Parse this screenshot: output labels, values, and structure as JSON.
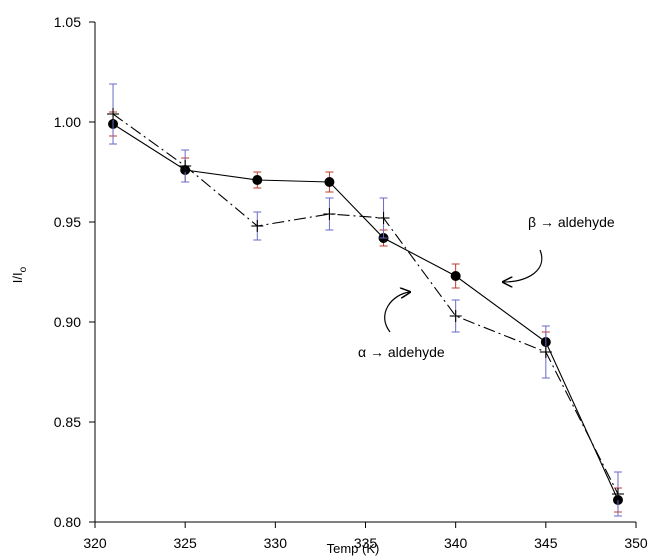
{
  "chart_data": {
    "type": "line",
    "xlabel": "Temp (K)",
    "ylabel_main": "I/I",
    "ylabel_sub": "o",
    "xlim": [
      320,
      350
    ],
    "ylim": [
      0.8,
      1.05
    ],
    "x_ticks": [
      320,
      325,
      330,
      335,
      340,
      345,
      350
    ],
    "y_ticks": [
      0.8,
      0.85,
      0.9,
      0.95,
      1.0,
      1.05
    ],
    "grid": false,
    "legend": "none",
    "series": [
      {
        "key": "beta",
        "x": [
          321,
          325,
          329,
          333,
          336,
          340,
          345,
          349
        ],
        "y": [
          0.999,
          0.976,
          0.971,
          0.97,
          0.942,
          0.923,
          0.89,
          0.811
        ],
        "err": [
          0.006,
          0.006,
          0.004,
          0.005,
          0.004,
          0.006,
          0.005,
          0.006
        ],
        "marker": "circle",
        "line": "solid",
        "color": "#000000",
        "err_color": "#c0392b"
      },
      {
        "key": "alpha",
        "x": [
          321,
          325,
          329,
          333,
          336,
          340,
          345,
          349
        ],
        "y": [
          1.004,
          0.978,
          0.948,
          0.954,
          0.952,
          0.903,
          0.885,
          0.814
        ],
        "err": [
          0.015,
          0.008,
          0.007,
          0.008,
          0.01,
          0.008,
          0.013,
          0.011
        ],
        "marker": "cross",
        "line": "dashdot",
        "color": "#000000",
        "err_color": "#6a6ac8"
      }
    ],
    "annotations": [
      {
        "key": "beta",
        "text_prefix": "β → ",
        "text": "aldehyde"
      },
      {
        "key": "alpha",
        "text_prefix": "α → ",
        "text": "aldehyde"
      }
    ]
  }
}
